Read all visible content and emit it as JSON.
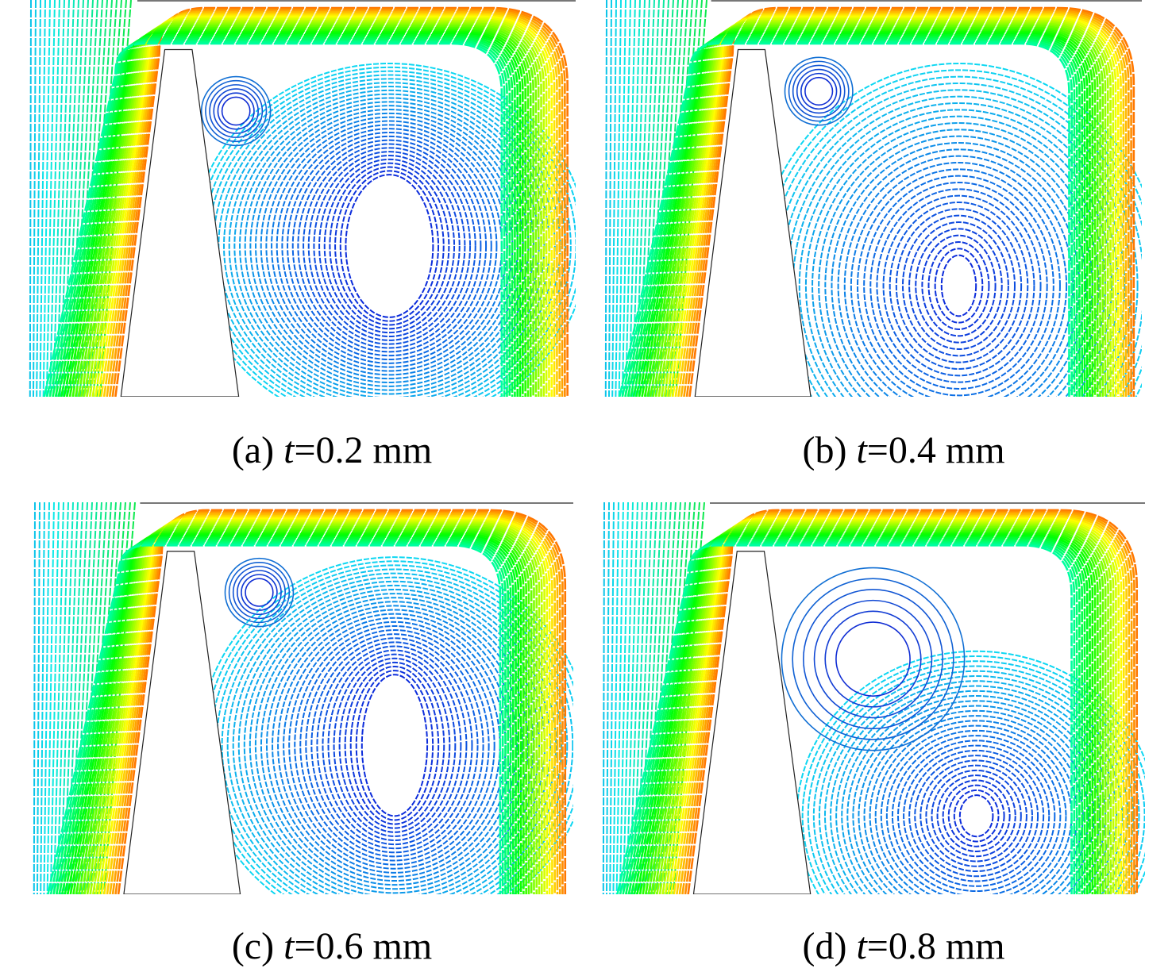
{
  "panels": [
    {
      "label": "(a)",
      "variable": "t",
      "value_text": "=0.2 mm"
    },
    {
      "label": "(b)",
      "variable": "t",
      "value_text": "=0.4 mm"
    },
    {
      "label": "(c)",
      "variable": "t",
      "value_text": "=0.6 mm"
    },
    {
      "label": "(d)",
      "variable": "t",
      "value_text": "=0.8 mm"
    }
  ]
}
